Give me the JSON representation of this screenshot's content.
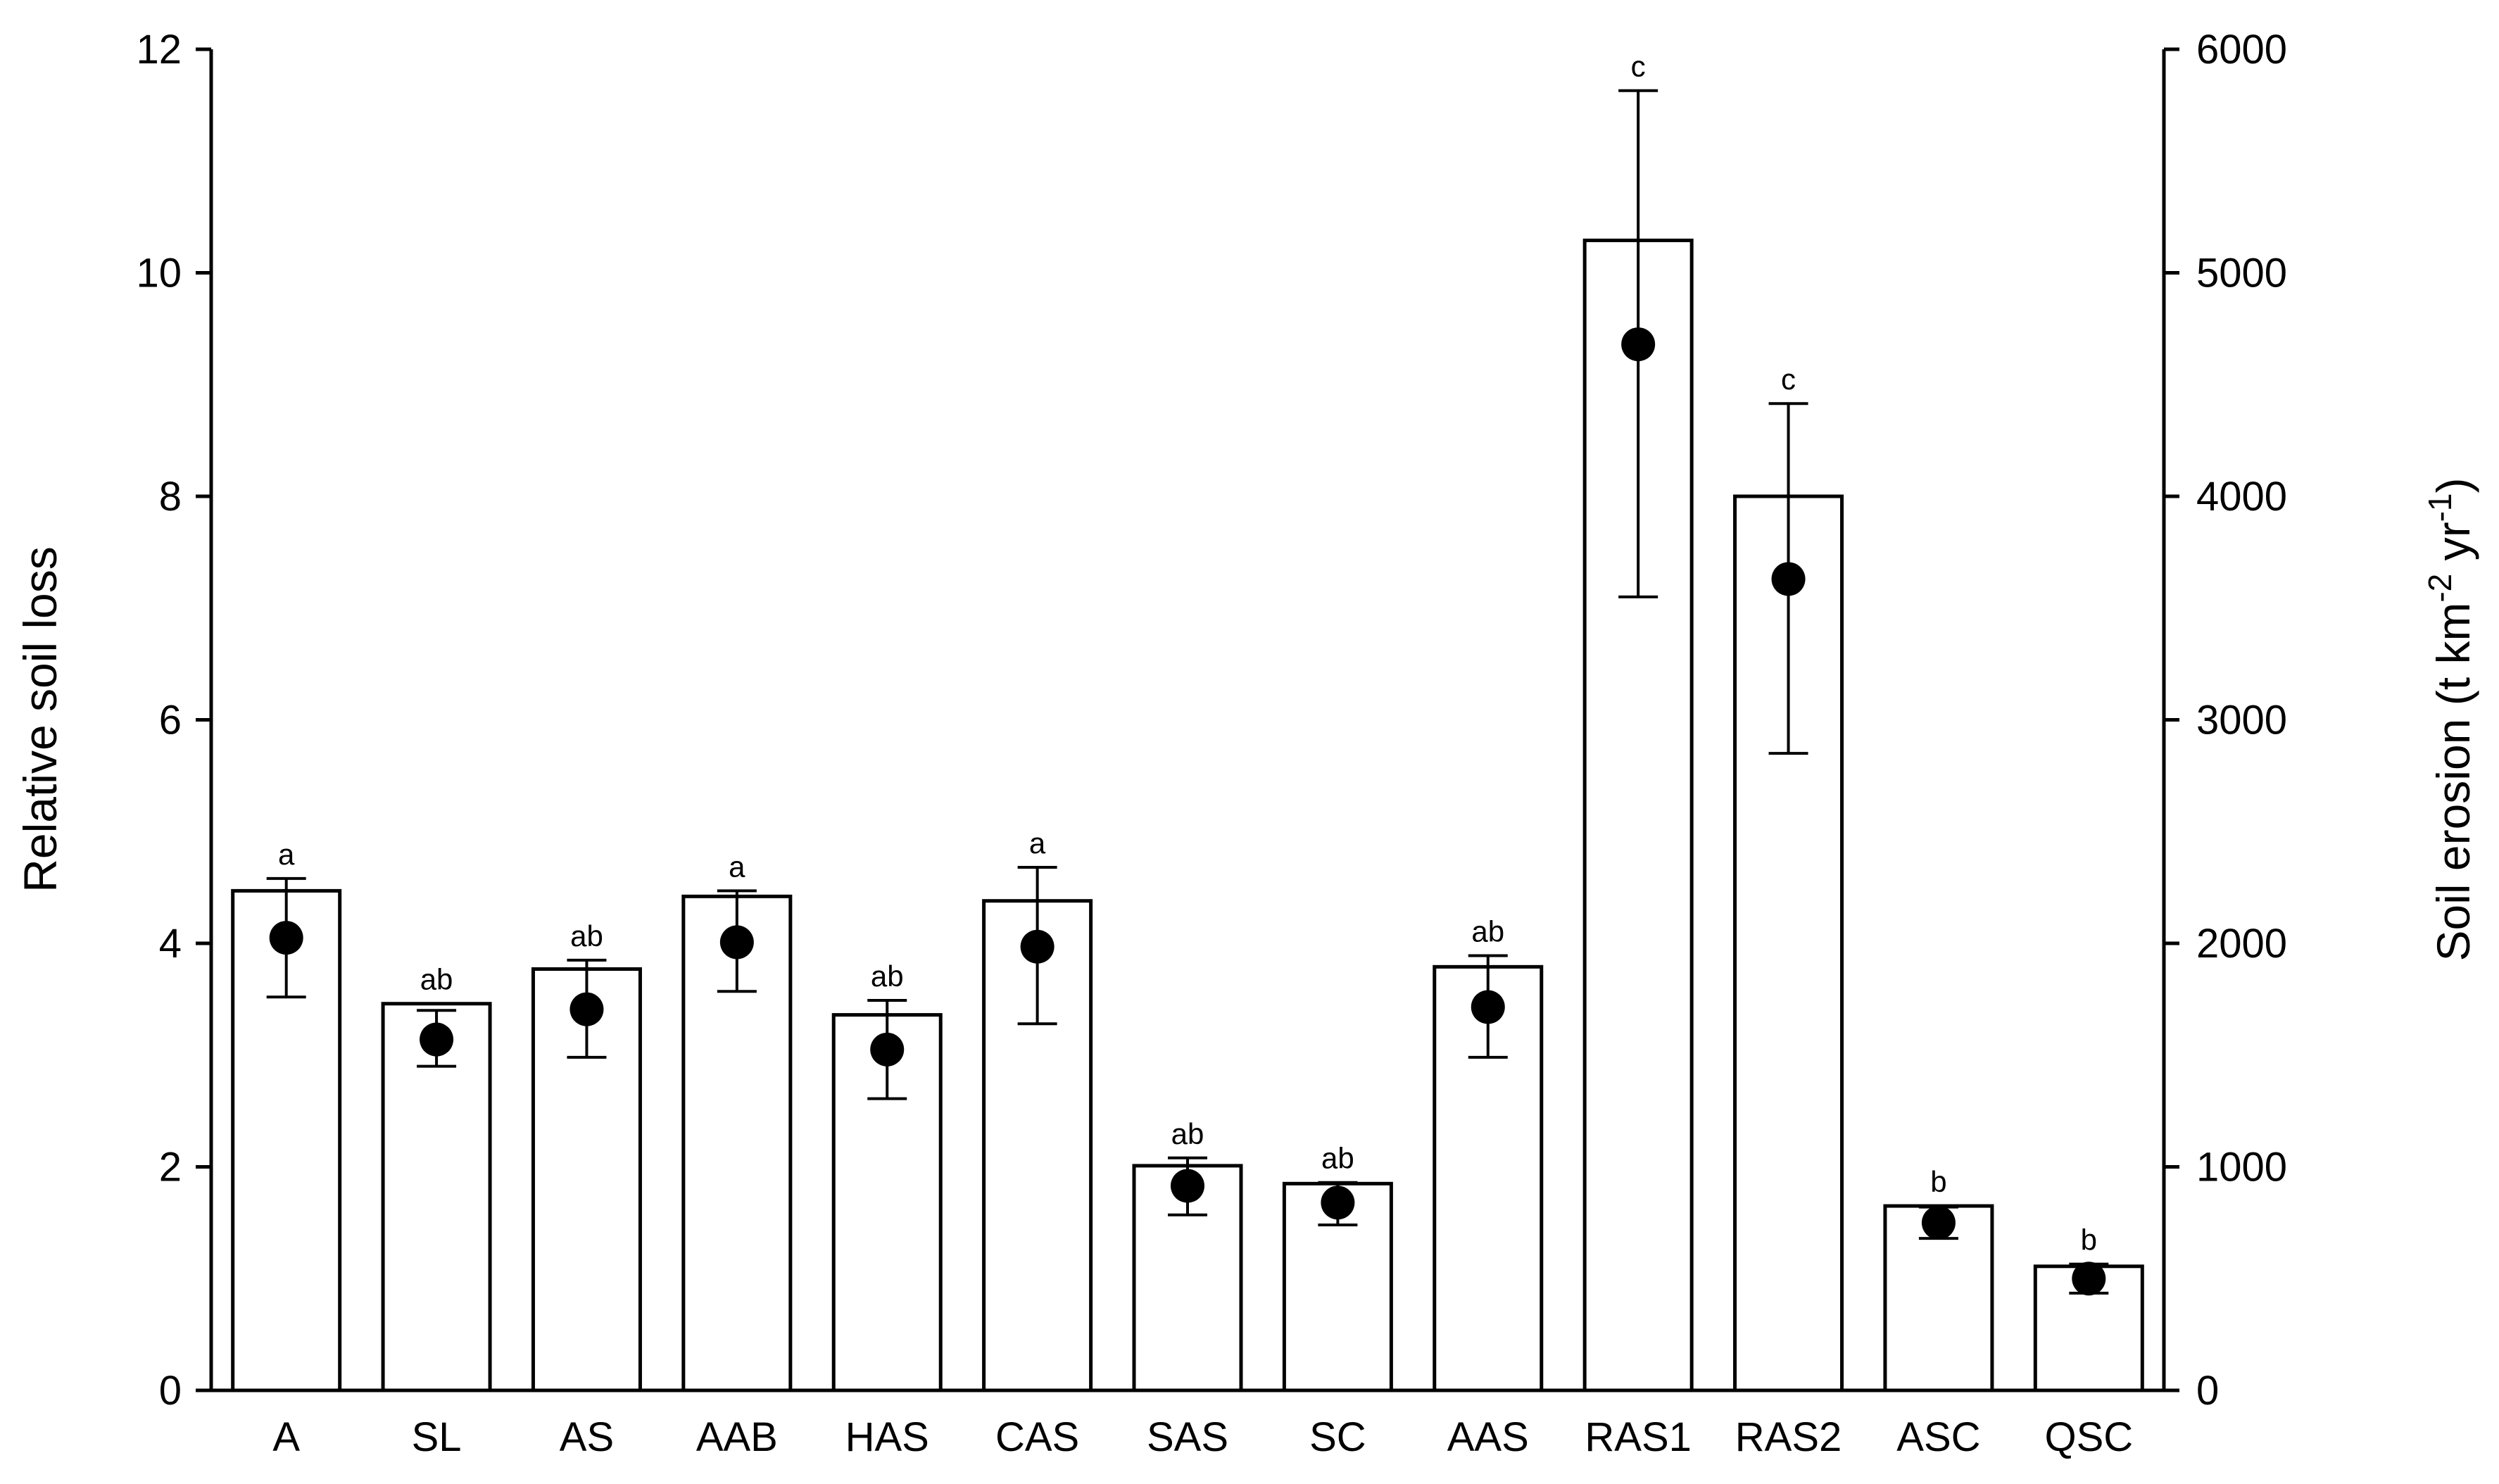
{
  "chart_data": {
    "type": "bar",
    "title": "",
    "ylabel": "Relative soil loss",
    "y2label": "Soil erosion (t km",
    "y2label_sup1": "-2",
    "y2label_mid": " yr",
    "y2label_sup2": "-1",
    "y2label_end": ")",
    "ylim": [
      0,
      12
    ],
    "y2lim": [
      0,
      6000
    ],
    "yticks": [
      "0",
      "2",
      "4",
      "6",
      "8",
      "10",
      "12"
    ],
    "y2ticks": [
      "0",
      "1000",
      "2000",
      "3000",
      "4000",
      "5000",
      "6000"
    ],
    "grid": false,
    "categories": [
      "A",
      "SL",
      "AS",
      "AAB",
      "HAS",
      "CAS",
      "SAS",
      "SC",
      "AAS",
      "RAS1",
      "RAS2",
      "ASC",
      "QSC"
    ],
    "series": [
      {
        "type": "bar",
        "axis": "left",
        "values": [
          4.47,
          3.46,
          3.77,
          4.42,
          3.36,
          4.38,
          2.01,
          1.85,
          3.79,
          10.29,
          8.0,
          1.65,
          1.11
        ]
      },
      {
        "type": "scatter",
        "axis": "right",
        "values": [
          2025,
          1570,
          1705,
          2005,
          1525,
          1985,
          915,
          840,
          1715,
          4680,
          3630,
          750,
          500
        ],
        "error_low": [
          1760,
          1450,
          1490,
          1785,
          1305,
          1640,
          785,
          740,
          1490,
          3550,
          2850,
          680,
          435
        ],
        "error_high": [
          2290,
          1700,
          1925,
          2235,
          1745,
          2340,
          1040,
          930,
          1945,
          5815,
          4415,
          820,
          565
        ]
      }
    ],
    "significance_labels": [
      "a",
      "ab",
      "ab",
      "a",
      "ab",
      "a",
      "ab",
      "ab",
      "ab",
      "c",
      "c",
      "b",
      "b"
    ]
  }
}
